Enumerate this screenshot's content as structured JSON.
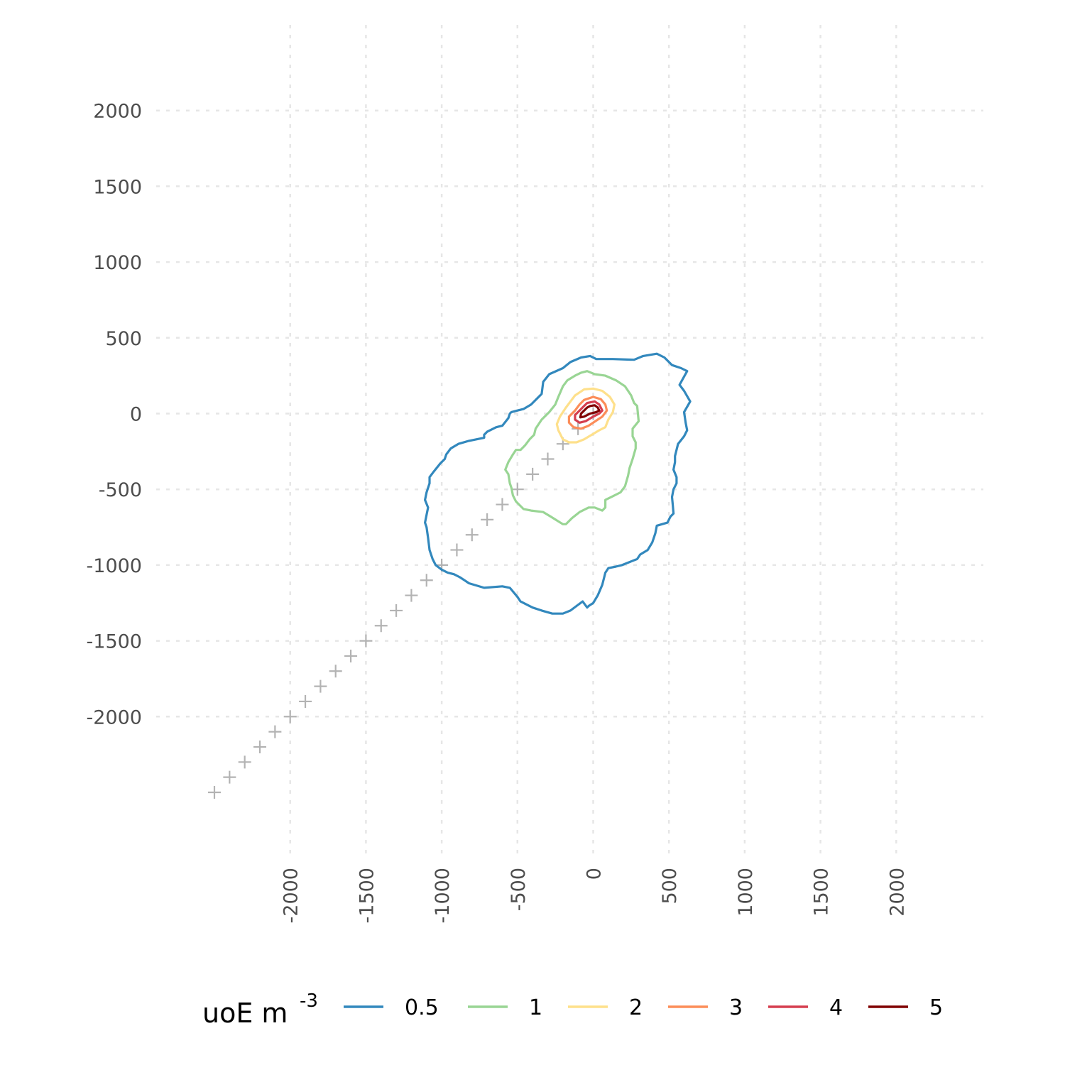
{
  "chart_data": {
    "type": "line",
    "title": "",
    "xlabel": "",
    "ylabel": "",
    "xlim": [
      -2500,
      2500
    ],
    "ylim": [
      -2500,
      2500
    ],
    "x_ticks": [
      -2000,
      -1500,
      -1000,
      -500,
      0,
      500,
      1000,
      1500,
      2000
    ],
    "y_ticks": [
      2000,
      1500,
      1000,
      500,
      0,
      -500,
      -1000,
      -1500,
      -2000
    ],
    "grid": "dotted major gridlines",
    "legend": {
      "placement": "bottom",
      "title": "uoE m",
      "title_superscript": "-3",
      "entries": [
        "0.5",
        "1",
        "2",
        "3",
        "4",
        "5"
      ]
    },
    "marker_series": {
      "symbol": "+",
      "color": "#b3b3b3",
      "points": [
        [
          0,
          0
        ],
        [
          -100,
          -100
        ],
        [
          -200,
          -200
        ],
        [
          -300,
          -300
        ],
        [
          -400,
          -400
        ],
        [
          -500,
          -500
        ],
        [
          -600,
          -600
        ],
        [
          -700,
          -700
        ],
        [
          -800,
          -800
        ],
        [
          -900,
          -900
        ],
        [
          -1000,
          -1000
        ],
        [
          -1100,
          -1100
        ],
        [
          -1200,
          -1200
        ],
        [
          -1300,
          -1300
        ],
        [
          -1400,
          -1400
        ],
        [
          -1500,
          -1500
        ],
        [
          -1600,
          -1600
        ],
        [
          -1700,
          -1700
        ],
        [
          -1800,
          -1800
        ],
        [
          -1900,
          -1900
        ],
        [
          -2000,
          -2000
        ],
        [
          -2100,
          -2100
        ],
        [
          -2200,
          -2200
        ],
        [
          -2300,
          -2300
        ],
        [
          -2400,
          -2400
        ],
        [
          -2500,
          -2500
        ]
      ]
    },
    "series": [
      {
        "name": "0.5",
        "color": "#3288bd",
        "points": [
          [
            -330,
            210
          ],
          [
            -290,
            260
          ],
          [
            -200,
            300
          ],
          [
            -150,
            340
          ],
          [
            -80,
            370
          ],
          [
            -20,
            380
          ],
          [
            20,
            360
          ],
          [
            130,
            360
          ],
          [
            270,
            355
          ],
          [
            330,
            380
          ],
          [
            420,
            395
          ],
          [
            470,
            370
          ],
          [
            520,
            320
          ],
          [
            580,
            300
          ],
          [
            620,
            280
          ],
          [
            570,
            190
          ],
          [
            600,
            150
          ],
          [
            640,
            80
          ],
          [
            600,
            10
          ],
          [
            610,
            -60
          ],
          [
            620,
            -110
          ],
          [
            600,
            -150
          ],
          [
            560,
            -200
          ],
          [
            540,
            -280
          ],
          [
            540,
            -320
          ],
          [
            530,
            -370
          ],
          [
            550,
            -420
          ],
          [
            550,
            -460
          ],
          [
            530,
            -500
          ],
          [
            520,
            -550
          ],
          [
            525,
            -600
          ],
          [
            530,
            -660
          ],
          [
            510,
            -680
          ],
          [
            490,
            -720
          ],
          [
            420,
            -740
          ],
          [
            410,
            -790
          ],
          [
            390,
            -850
          ],
          [
            360,
            -900
          ],
          [
            310,
            -930
          ],
          [
            290,
            -960
          ],
          [
            240,
            -980
          ],
          [
            190,
            -1000
          ],
          [
            150,
            -1010
          ],
          [
            100,
            -1020
          ],
          [
            80,
            -1050
          ],
          [
            60,
            -1130
          ],
          [
            30,
            -1200
          ],
          [
            0,
            -1250
          ],
          [
            -30,
            -1270
          ],
          [
            -40,
            -1280
          ],
          [
            -70,
            -1240
          ],
          [
            -110,
            -1270
          ],
          [
            -150,
            -1300
          ],
          [
            -200,
            -1320
          ],
          [
            -270,
            -1320
          ],
          [
            -340,
            -1300
          ],
          [
            -400,
            -1280
          ],
          [
            -480,
            -1240
          ],
          [
            -500,
            -1210
          ],
          [
            -550,
            -1150
          ],
          [
            -600,
            -1140
          ],
          [
            -720,
            -1150
          ],
          [
            -820,
            -1120
          ],
          [
            -850,
            -1100
          ],
          [
            -880,
            -1080
          ],
          [
            -920,
            -1060
          ],
          [
            -960,
            -1050
          ],
          [
            -1000,
            -1030
          ],
          [
            -1040,
            -1000
          ],
          [
            -1060,
            -960
          ],
          [
            -1080,
            -900
          ],
          [
            -1090,
            -820
          ],
          [
            -1100,
            -750
          ],
          [
            -1110,
            -720
          ],
          [
            -1090,
            -620
          ],
          [
            -1110,
            -570
          ],
          [
            -1100,
            -520
          ],
          [
            -1080,
            -460
          ],
          [
            -1080,
            -420
          ],
          [
            -1050,
            -380
          ],
          [
            -1010,
            -330
          ],
          [
            -980,
            -300
          ],
          [
            -970,
            -270
          ],
          [
            -940,
            -230
          ],
          [
            -890,
            -200
          ],
          [
            -820,
            -180
          ],
          [
            -720,
            -160
          ],
          [
            -720,
            -140
          ],
          [
            -700,
            -120
          ],
          [
            -640,
            -90
          ],
          [
            -600,
            -80
          ],
          [
            -560,
            -30
          ],
          [
            -550,
            0
          ],
          [
            -540,
            10
          ],
          [
            -500,
            20
          ],
          [
            -460,
            30
          ],
          [
            -410,
            60
          ],
          [
            -340,
            130
          ],
          [
            -330,
            210
          ]
        ]
      },
      {
        "name": "1",
        "color": "#99d594",
        "points": [
          [
            -200,
            180
          ],
          [
            -170,
            220
          ],
          [
            -120,
            250
          ],
          [
            -80,
            270
          ],
          [
            -40,
            280
          ],
          [
            10,
            260
          ],
          [
            80,
            250
          ],
          [
            150,
            220
          ],
          [
            210,
            180
          ],
          [
            250,
            120
          ],
          [
            270,
            70
          ],
          [
            290,
            50
          ],
          [
            300,
            -50
          ],
          [
            260,
            -100
          ],
          [
            260,
            -150
          ],
          [
            280,
            -190
          ],
          [
            280,
            -230
          ],
          [
            260,
            -300
          ],
          [
            240,
            -360
          ],
          [
            230,
            -410
          ],
          [
            210,
            -480
          ],
          [
            180,
            -520
          ],
          [
            120,
            -550
          ],
          [
            80,
            -570
          ],
          [
            80,
            -620
          ],
          [
            60,
            -640
          ],
          [
            10,
            -620
          ],
          [
            -30,
            -620
          ],
          [
            -90,
            -650
          ],
          [
            -140,
            -690
          ],
          [
            -180,
            -730
          ],
          [
            -200,
            -730
          ],
          [
            -280,
            -680
          ],
          [
            -330,
            -650
          ],
          [
            -410,
            -640
          ],
          [
            -460,
            -630
          ],
          [
            -490,
            -600
          ],
          [
            -510,
            -580
          ],
          [
            -530,
            -540
          ],
          [
            -540,
            -490
          ],
          [
            -550,
            -460
          ],
          [
            -560,
            -400
          ],
          [
            -580,
            -370
          ],
          [
            -560,
            -320
          ],
          [
            -530,
            -270
          ],
          [
            -510,
            -240
          ],
          [
            -480,
            -240
          ],
          [
            -450,
            -210
          ],
          [
            -420,
            -170
          ],
          [
            -390,
            -140
          ],
          [
            -380,
            -100
          ],
          [
            -340,
            -40
          ],
          [
            -290,
            10
          ],
          [
            -250,
            60
          ],
          [
            -230,
            110
          ],
          [
            -200,
            180
          ]
        ]
      },
      {
        "name": "2",
        "color": "#fee08b",
        "points": [
          [
            -120,
            120
          ],
          [
            -60,
            160
          ],
          [
            0,
            165
          ],
          [
            60,
            150
          ],
          [
            110,
            110
          ],
          [
            140,
            60
          ],
          [
            130,
            10
          ],
          [
            100,
            -40
          ],
          [
            80,
            -90
          ],
          [
            40,
            -110
          ],
          [
            -10,
            -140
          ],
          [
            -60,
            -170
          ],
          [
            -110,
            -190
          ],
          [
            -160,
            -190
          ],
          [
            -200,
            -170
          ],
          [
            -230,
            -110
          ],
          [
            -240,
            -70
          ],
          [
            -220,
            -20
          ],
          [
            -180,
            40
          ],
          [
            -150,
            80
          ],
          [
            -120,
            120
          ]
        ]
      },
      {
        "name": "3",
        "color": "#fc8d59",
        "points": [
          [
            -60,
            90
          ],
          [
            0,
            110
          ],
          [
            50,
            95
          ],
          [
            80,
            60
          ],
          [
            90,
            20
          ],
          [
            60,
            -20
          ],
          [
            30,
            -40
          ],
          [
            -30,
            -80
          ],
          [
            -80,
            -100
          ],
          [
            -130,
            -90
          ],
          [
            -160,
            -60
          ],
          [
            -160,
            -20
          ],
          [
            -120,
            20
          ],
          [
            -90,
            60
          ],
          [
            -60,
            90
          ]
        ]
      },
      {
        "name": "4",
        "color": "#d53e4f",
        "points": [
          [
            -40,
            70
          ],
          [
            10,
            80
          ],
          [
            40,
            60
          ],
          [
            60,
            20
          ],
          [
            40,
            0
          ],
          [
            0,
            -20
          ],
          [
            -50,
            -50
          ],
          [
            -90,
            -60
          ],
          [
            -120,
            -40
          ],
          [
            -120,
            -10
          ],
          [
            -90,
            20
          ],
          [
            -60,
            50
          ],
          [
            -40,
            70
          ]
        ]
      },
      {
        "name": "5",
        "color": "#800000",
        "points": [
          [
            -20,
            50
          ],
          [
            10,
            55
          ],
          [
            30,
            40
          ],
          [
            40,
            20
          ],
          [
            20,
            10
          ],
          [
            -20,
            0
          ],
          [
            -60,
            -20
          ],
          [
            -85,
            -25
          ],
          [
            -80,
            0
          ],
          [
            -60,
            20
          ],
          [
            -40,
            40
          ],
          [
            -20,
            50
          ]
        ]
      }
    ]
  }
}
